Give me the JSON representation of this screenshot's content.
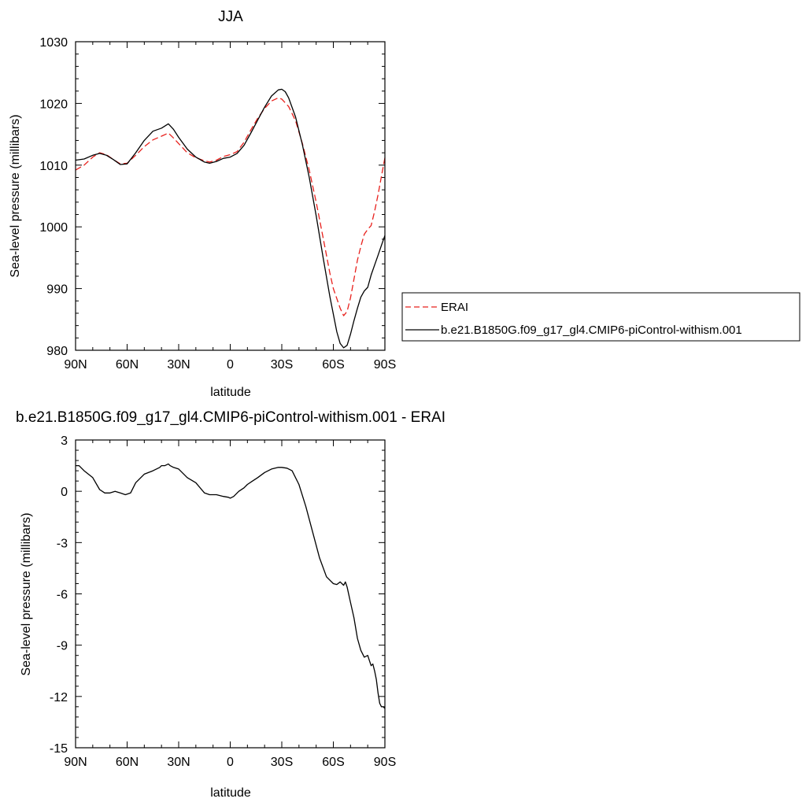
{
  "colors": {
    "erai": "#e8201c",
    "model": "#000000"
  },
  "chart_data": [
    {
      "type": "line",
      "title": "JJA",
      "xlabel": "latitude",
      "ylabel": "Sea-level pressure (millibars)",
      "xlim": [
        -90,
        90
      ],
      "ylim": [
        980,
        1030
      ],
      "x_tick_values": [
        -90,
        -60,
        -30,
        0,
        30,
        60,
        90
      ],
      "x_tick_labels": [
        "90N",
        "60N",
        "30N",
        "0",
        "30S",
        "60S",
        "90S"
      ],
      "y_ticks": [
        980,
        990,
        1000,
        1010,
        1020,
        1030
      ],
      "grid": false,
      "legend": {
        "position": "right",
        "entries": [
          "ERAI",
          "b.e21.B1850G.f09_g17_gl4.CMIP6-piControl-withism.001"
        ]
      },
      "series": [
        {
          "name": "ERAI",
          "style": "dashed",
          "color": "#e8201c",
          "x": [
            -90,
            -85,
            -80,
            -76,
            -72,
            -68,
            -64,
            -60,
            -55,
            -50,
            -45,
            -40,
            -36,
            -33,
            -30,
            -25,
            -20,
            -15,
            -12,
            -8,
            -4,
            0,
            4,
            8,
            12,
            16,
            20,
            24,
            28,
            30,
            34,
            38,
            42,
            46,
            50,
            54,
            58,
            60,
            64,
            66,
            68,
            70,
            72,
            74,
            76,
            78,
            80,
            82,
            84,
            86,
            88,
            90
          ],
          "y": [
            1009.2,
            1010.0,
            1011.3,
            1012.0,
            1011.7,
            1010.9,
            1010.2,
            1010.3,
            1011.6,
            1013.0,
            1014.1,
            1014.7,
            1015.2,
            1014.4,
            1013.5,
            1012.0,
            1011.2,
            1010.7,
            1010.5,
            1010.8,
            1011.4,
            1011.7,
            1012.2,
            1013.7,
            1015.7,
            1017.6,
            1019.2,
            1020.4,
            1020.9,
            1020.7,
            1019.5,
            1017.2,
            1013.5,
            1009.2,
            1004.0,
            998.3,
            992.5,
            990.0,
            986.8,
            985.6,
            986.3,
            988.5,
            991.5,
            994.6,
            996.8,
            998.8,
            999.6,
            1000.2,
            1002.5,
            1005.2,
            1008.2,
            1011.2
          ]
        },
        {
          "name": "b.e21.B1850G.f09_g17_gl4.CMIP6-piControl-withism.001",
          "style": "solid",
          "color": "#000000",
          "x": [
            -90,
            -85,
            -80,
            -76,
            -72,
            -68,
            -64,
            -60,
            -55,
            -50,
            -45,
            -40,
            -36,
            -33,
            -30,
            -25,
            -20,
            -15,
            -12,
            -8,
            -4,
            0,
            4,
            8,
            12,
            16,
            20,
            24,
            28,
            30,
            32,
            34,
            38,
            42,
            46,
            50,
            54,
            58,
            62,
            64,
            66,
            68,
            70,
            72,
            74,
            76,
            78,
            80,
            82,
            84,
            86,
            88,
            90
          ],
          "y": [
            1010.8,
            1011.0,
            1011.6,
            1011.9,
            1011.6,
            1010.9,
            1010.1,
            1010.2,
            1012.0,
            1014.0,
            1015.5,
            1016.0,
            1016.7,
            1015.8,
            1014.5,
            1012.6,
            1011.3,
            1010.5,
            1010.3,
            1010.6,
            1011.1,
            1011.3,
            1011.9,
            1013.2,
            1015.2,
            1017.3,
            1019.4,
            1021.2,
            1022.2,
            1022.3,
            1021.9,
            1020.9,
            1017.8,
            1013.3,
            1008.0,
            1001.8,
            995.1,
            988.7,
            983.0,
            981.1,
            980.4,
            980.8,
            982.6,
            984.8,
            986.8,
            988.6,
            989.6,
            990.2,
            992.2,
            993.8,
            995.4,
            997.0,
            998.6
          ]
        }
      ]
    },
    {
      "type": "line",
      "title": "b.e21.B1850G.f09_g17_gl4.CMIP6-piControl-withism.001 - ERAI",
      "xlabel": "latitude",
      "ylabel": "Sea-level pressure (millibars)",
      "xlim": [
        -90,
        90
      ],
      "ylim": [
        -15,
        3
      ],
      "x_tick_values": [
        -90,
        -60,
        -30,
        0,
        30,
        60,
        90
      ],
      "x_tick_labels": [
        "90N",
        "60N",
        "30N",
        "0",
        "30S",
        "60S",
        "90S"
      ],
      "y_ticks": [
        3,
        0,
        -3,
        -6,
        -9,
        -12,
        -15
      ],
      "grid": false,
      "series": [
        {
          "style": "solid",
          "color": "#000000",
          "x": [
            -90,
            -88,
            -85,
            -80,
            -76,
            -73,
            -70,
            -67,
            -64,
            -61,
            -58,
            -55,
            -50,
            -45,
            -41,
            -40,
            -38,
            -36,
            -35,
            -33,
            -30,
            -25,
            -20,
            -15,
            -12,
            -8,
            -4,
            -1,
            0,
            2,
            5,
            8,
            10,
            13,
            16,
            20,
            24,
            28,
            30,
            33,
            36,
            40,
            44,
            48,
            52,
            56,
            60,
            62,
            64,
            66,
            67,
            68,
            70,
            72,
            74,
            76,
            78,
            80,
            81,
            82,
            83,
            84,
            85,
            86,
            87,
            88,
            89,
            90
          ],
          "y": [
            1.5,
            1.5,
            1.2,
            0.8,
            0.1,
            -0.1,
            -0.1,
            0.0,
            -0.1,
            -0.2,
            -0.1,
            0.5,
            1.0,
            1.2,
            1.4,
            1.5,
            1.5,
            1.6,
            1.5,
            1.4,
            1.3,
            0.8,
            0.5,
            -0.1,
            -0.2,
            -0.2,
            -0.3,
            -0.35,
            -0.4,
            -0.3,
            0.0,
            0.2,
            0.4,
            0.6,
            0.8,
            1.1,
            1.3,
            1.4,
            1.4,
            1.35,
            1.2,
            0.4,
            -0.9,
            -2.4,
            -3.9,
            -5.0,
            -5.4,
            -5.45,
            -5.3,
            -5.5,
            -5.3,
            -5.6,
            -6.5,
            -7.4,
            -8.6,
            -9.3,
            -9.7,
            -9.6,
            -9.9,
            -10.2,
            -10.1,
            -10.5,
            -11.0,
            -11.8,
            -12.4,
            -12.6,
            -12.6,
            -12.7
          ]
        }
      ]
    }
  ]
}
